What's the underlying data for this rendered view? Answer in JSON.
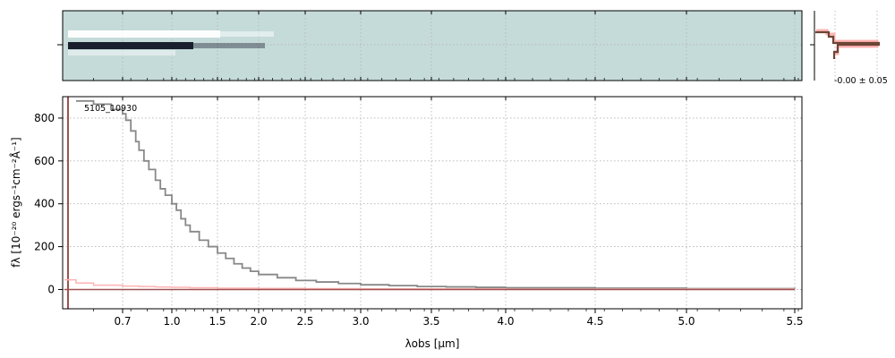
{
  "chart_data": [
    {
      "panel": "2d-spectrum",
      "type": "heatmap",
      "background_color": "#c5dbda",
      "trace_colors": [
        "#ffffff",
        "#1a1f2e"
      ]
    },
    {
      "panel": "1d-spectrum",
      "type": "line",
      "title": "",
      "label": "5105_10930",
      "xlabel": "λobs [μm]",
      "ylabel": "fλ [10⁻²⁰ ergs⁻¹cm⁻²Å⁻¹]",
      "x_ticks": [
        {
          "value": 0.7,
          "label": "0.7"
        },
        {
          "value": 1.0,
          "label": "1.0"
        },
        {
          "value": 1.5,
          "label": "1.5"
        },
        {
          "value": 2.0,
          "label": "2.0"
        },
        {
          "value": 2.5,
          "label": "2.5"
        },
        {
          "value": 3.0,
          "label": "3.0"
        },
        {
          "value": 3.5,
          "label": "3.5"
        },
        {
          "value": 4.0,
          "label": "4.0"
        },
        {
          "value": 4.5,
          "label": "4.5"
        },
        {
          "value": 5.0,
          "label": "5.0"
        },
        {
          "value": 5.5,
          "label": "5.5"
        }
      ],
      "y_ticks": [
        0,
        200,
        400,
        600,
        800
      ],
      "ylim": [
        -90,
        900
      ],
      "grid": true,
      "series": [
        {
          "color": "#888888",
          "x": [
            0.62,
            0.65,
            0.68,
            0.7,
            0.72,
            0.75,
            0.78,
            0.8,
            0.83,
            0.86,
            0.9,
            0.93,
            0.96,
            1.0,
            1.05,
            1.1,
            1.15,
            1.2,
            1.3,
            1.4,
            1.5,
            1.6,
            1.7,
            1.8,
            1.9,
            2.0,
            2.2,
            2.4,
            2.6,
            2.8,
            3.0,
            3.2,
            3.4,
            3.6,
            3.8,
            4.0,
            4.5,
            5.0,
            5.5
          ],
          "y": [
            880,
            865,
            840,
            820,
            790,
            740,
            690,
            650,
            600,
            560,
            510,
            470,
            440,
            400,
            370,
            330,
            300,
            270,
            230,
            200,
            170,
            145,
            120,
            100,
            85,
            70,
            55,
            42,
            35,
            28,
            22,
            18,
            14,
            12,
            10,
            8,
            6,
            4,
            3
          ]
        },
        {
          "color": "#ffb3b3",
          "x": [
            0.6,
            0.62,
            0.65,
            0.7,
            0.8,
            0.9,
            1.0,
            1.2,
            1.5,
            2.0,
            2.5,
            3.0,
            4.0,
            5.0,
            5.5
          ],
          "y": [
            45,
            30,
            20,
            16,
            14,
            12,
            10,
            8,
            6,
            5,
            4,
            3,
            2,
            2,
            2
          ]
        },
        {
          "color": "#a05050",
          "x": [
            0.6,
            5.5
          ],
          "y": [
            0,
            0
          ]
        }
      ]
    },
    {
      "panel": "profile",
      "type": "line",
      "annotation": "-0.00 ± 0.05"
    }
  ]
}
